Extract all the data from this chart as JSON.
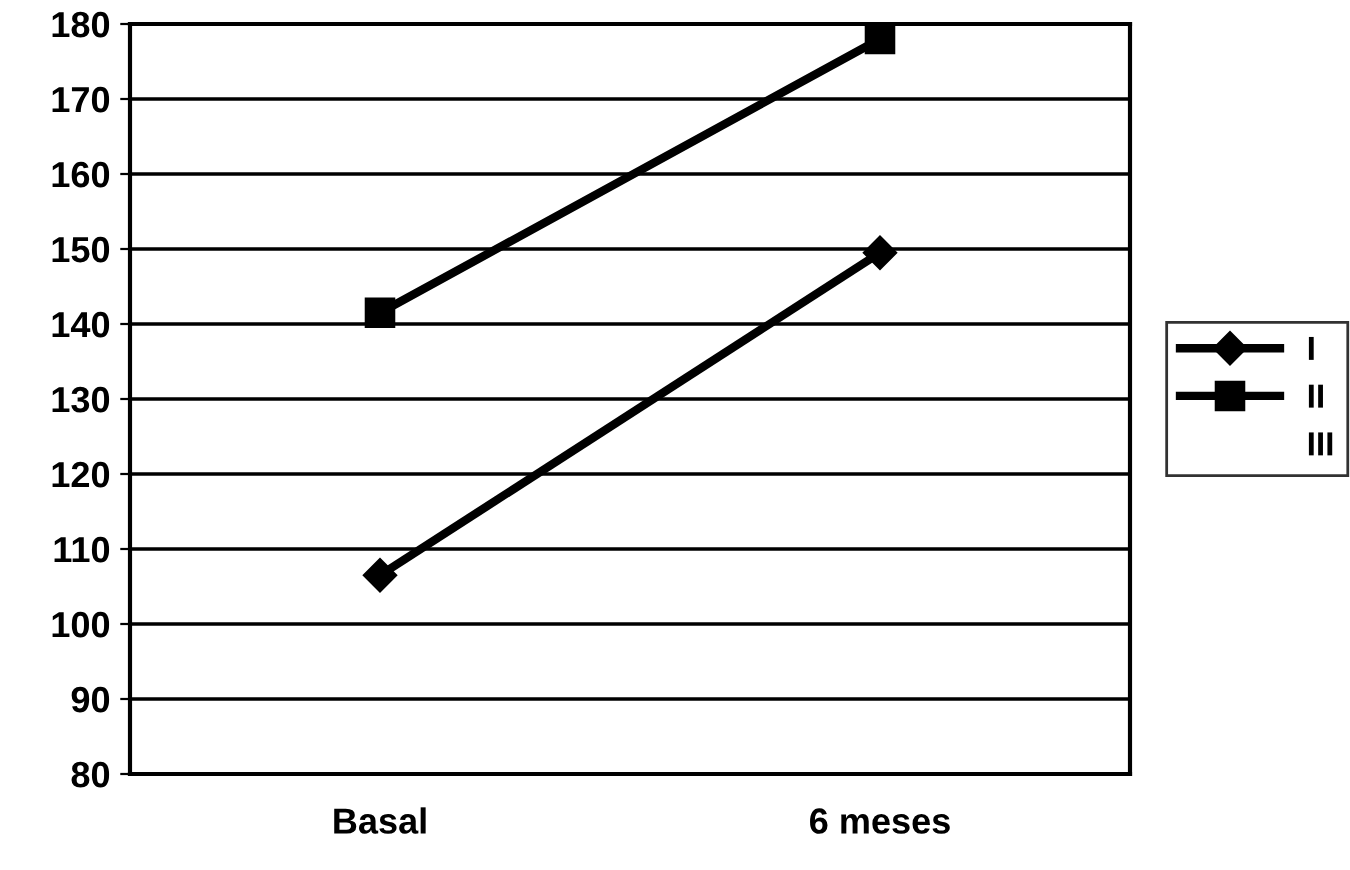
{
  "chart_data": {
    "type": "line",
    "categories": [
      "Basal",
      "6 meses"
    ],
    "series": [
      {
        "name": "I",
        "color": "#000000",
        "values": [
          106.5,
          149.5
        ],
        "marker": "diamond"
      },
      {
        "name": "II",
        "color": "#000000",
        "values": [
          141.5,
          178
        ],
        "marker": "square"
      },
      {
        "name": "III",
        "values": [
          null,
          null
        ],
        "marker": "none"
      }
    ],
    "ylim": [
      80,
      180
    ],
    "yticks": [
      80,
      90,
      100,
      110,
      120,
      130,
      140,
      150,
      160,
      170,
      180
    ],
    "grid": "y",
    "legend": "right",
    "line_style": "solid"
  }
}
